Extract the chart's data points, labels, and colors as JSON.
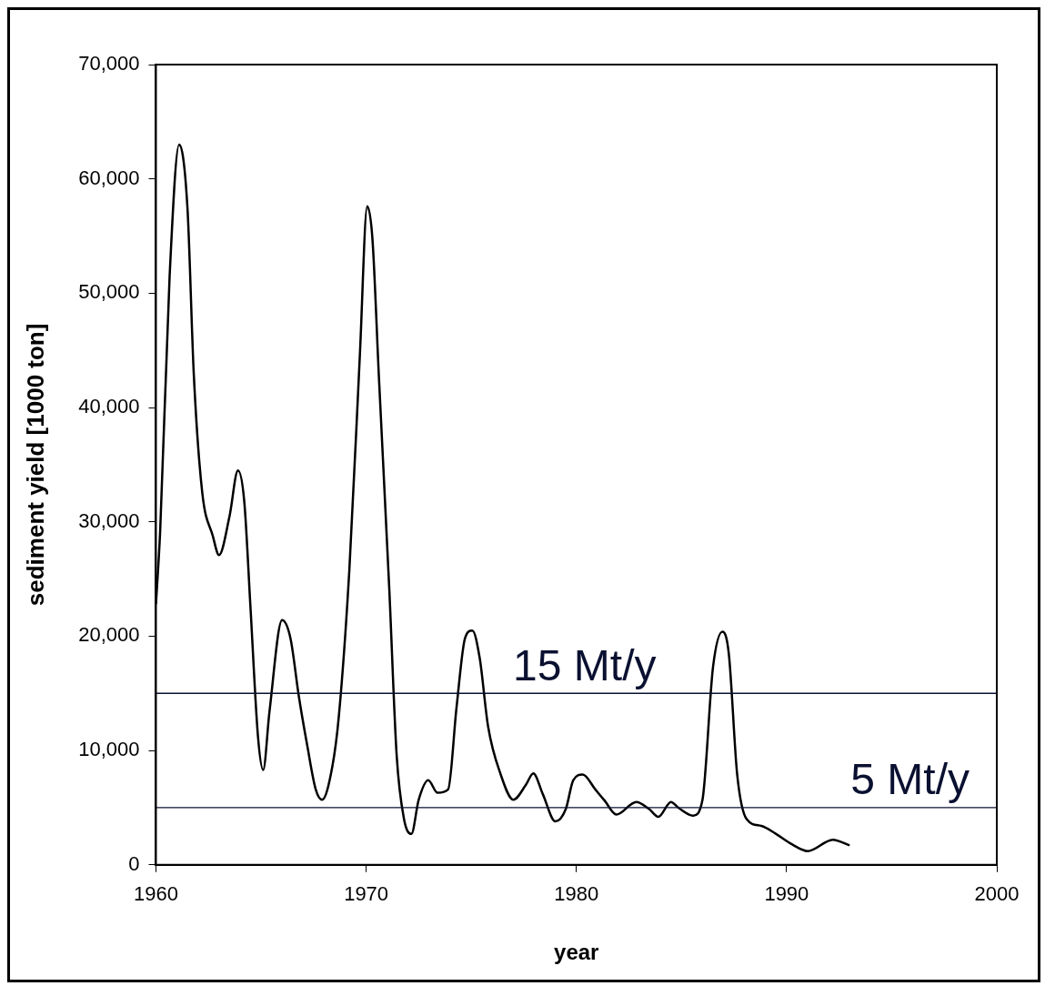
{
  "chart_data": {
    "type": "line",
    "xlabel": "year",
    "ylabel": "sediment yield [1000 ton]",
    "xlim": [
      1960,
      2000
    ],
    "xticks": [
      1960,
      1970,
      1980,
      1990,
      2000
    ],
    "ylim": [
      0,
      70000
    ],
    "yticks": [
      0,
      {
        "value": 10000,
        "label": "10,000"
      },
      {
        "value": 20000,
        "label": "20,000"
      },
      {
        "value": 30000,
        "label": "30,000"
      },
      {
        "value": 40000,
        "label": "40,000"
      },
      {
        "value": 50000,
        "label": "50,000"
      },
      {
        "value": 60000,
        "label": "60,000"
      },
      {
        "value": 70000,
        "label": "70,000"
      }
    ],
    "grid": false,
    "legend": false,
    "marker": "none",
    "line_style": "solid",
    "ref_lines": [
      {
        "axis": "y",
        "value": 15000,
        "label": "15 Mt/y",
        "color": "#0a1030"
      },
      {
        "axis": "y",
        "value": 5000,
        "label": "5 Mt/y",
        "color": "#0a1030"
      }
    ],
    "series": [
      {
        "color": "#000000",
        "x": [
          1960.0,
          1960.2,
          1960.65,
          1961.1,
          1961.5,
          1961.8,
          1962.2,
          1962.7,
          1963.0,
          1963.5,
          1963.9,
          1964.2,
          1964.5,
          1964.85,
          1965.1,
          1965.4,
          1966.0,
          1966.4,
          1966.8,
          1967.2,
          1967.6,
          1967.9,
          1968.4,
          1968.7,
          1969.2,
          1969.7,
          1970.05,
          1970.3,
          1970.6,
          1971.1,
          1971.45,
          1971.8,
          1972.15,
          1972.5,
          1972.95,
          1973.4,
          1973.9,
          1974.3,
          1974.7,
          1975.05,
          1975.4,
          1975.8,
          1976.4,
          1977.0,
          1977.6,
          1977.95,
          1978.4,
          1979.0,
          1979.5,
          1979.85,
          1980.3,
          1980.9,
          1981.35,
          1981.9,
          1982.85,
          1983.45,
          1983.9,
          1984.5,
          1984.85,
          1985.55,
          1986.0,
          1986.5,
          1986.95,
          1987.25,
          1987.65,
          1988.1,
          1988.8,
          1989.5,
          1990.25,
          1991.0,
          1992.2,
          1993.0
        ],
        "values": [
          22800,
          29200,
          51500,
          63000,
          57400,
          42900,
          32600,
          28800,
          27100,
          30500,
          34500,
          31800,
          22400,
          11300,
          8300,
          13400,
          21400,
          19800,
          14700,
          10400,
          6600,
          5700,
          8700,
          13000,
          25800,
          44600,
          57600,
          54700,
          42900,
          24100,
          9600,
          4000,
          2700,
          5700,
          7400,
          6300,
          6600,
          13800,
          19800,
          20500,
          18100,
          12100,
          7900,
          5700,
          7000,
          8000,
          6200,
          3800,
          4900,
          7400,
          7900,
          6600,
          5600,
          4400,
          5500,
          4900,
          4200,
          5500,
          5000,
          4300,
          5700,
          17300,
          20400,
          18500,
          7900,
          4000,
          3400,
          2700,
          1800,
          1200,
          2200,
          1700
        ]
      }
    ]
  }
}
